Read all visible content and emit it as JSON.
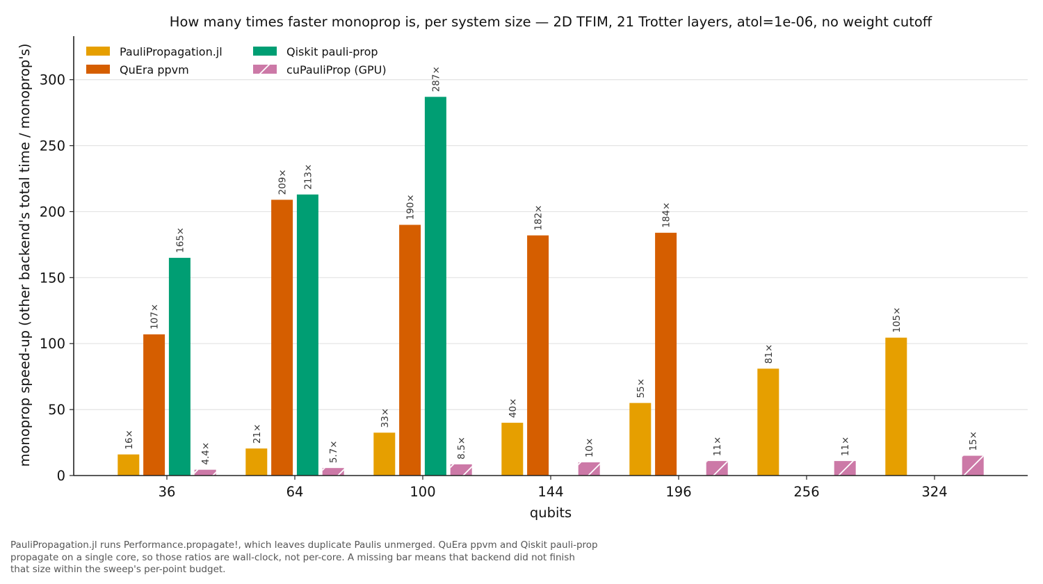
{
  "chart_data": {
    "type": "bar",
    "title": "How many times faster monoprop is, per system size — 2D TFIM, 21 Trotter layers, atol=1e-06, no weight cutoff",
    "xlabel": "qubits",
    "ylabel": "monoprop speed-up  (other backend's total time / monoprop's)",
    "categories": [
      "36",
      "64",
      "100",
      "144",
      "196",
      "256",
      "324"
    ],
    "ylim": [
      0,
      333
    ],
    "yticks": [
      0,
      50,
      100,
      150,
      200,
      250,
      300
    ],
    "grid": "horizontal",
    "legend_position": "top-left",
    "series": [
      {
        "name": "PauliPropagation.jl",
        "color": "#E69F00",
        "hatch": false,
        "values": [
          16,
          20.5,
          32.5,
          40,
          55,
          81,
          104.5
        ],
        "labels": [
          "16×",
          "21×",
          "33×",
          "40×",
          "55×",
          "81×",
          "105×"
        ]
      },
      {
        "name": "QuEra ppvm",
        "color": "#D55E00",
        "hatch": false,
        "values": [
          107,
          209,
          190,
          182,
          184,
          null,
          null
        ],
        "labels": [
          "107×",
          "209×",
          "190×",
          "182×",
          "184×",
          "",
          ""
        ]
      },
      {
        "name": "Qiskit pauli-prop",
        "color": "#009E73",
        "hatch": false,
        "values": [
          165,
          213,
          287,
          null,
          null,
          null,
          null
        ],
        "labels": [
          "165×",
          "213×",
          "287×",
          "",
          "",
          "",
          ""
        ]
      },
      {
        "name": "cuPauliProp (GPU)",
        "color": "#CC79A7",
        "hatch": true,
        "values": [
          4.4,
          5.7,
          8.5,
          10,
          11,
          11,
          15
        ],
        "labels": [
          "4.4×",
          "5.7×",
          "8.5×",
          "10×",
          "11×",
          "11×",
          "15×"
        ]
      }
    ]
  },
  "footnote": {
    "line1": "PauliPropagation.jl runs Performance.propagate!, which leaves duplicate Paulis unmerged. QuEra ppvm and Qiskit pauli-prop",
    "line2": "propagate on a single core, so those ratios are wall-clock, not per-core. A missing bar means that backend did not finish",
    "line3": "that size within the sweep's per-point budget."
  }
}
